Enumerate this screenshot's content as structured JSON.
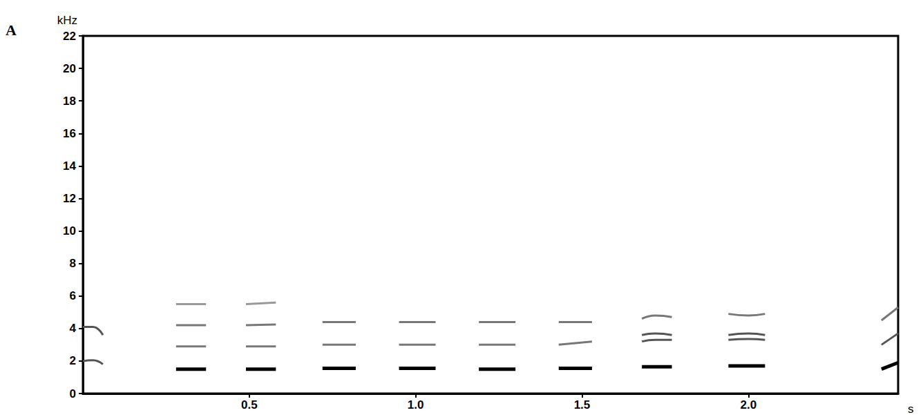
{
  "chart_data": {
    "type": "line",
    "panel_label": "A",
    "x_label": "s",
    "y_label": "kHz",
    "xlim": [
      0,
      2.45
    ],
    "xticks": [
      0.5,
      {
        "value": 1,
        "label": "1.0"
      },
      1.5,
      {
        "value": 2,
        "label": "2.0"
      }
    ],
    "ylim": [
      0,
      22
    ],
    "yticks": [
      0,
      2,
      4,
      6,
      8,
      10,
      12,
      14,
      16,
      18,
      20,
      22
    ],
    "grid": false,
    "segments": [
      {
        "color": "#555555",
        "x": [
          0.0,
          0.03,
          0.06
        ],
        "y": [
          4.1,
          4.1,
          3.6
        ]
      },
      {
        "color": "#555555",
        "x": [
          0.0,
          0.03,
          0.06
        ],
        "y": [
          2.0,
          2.05,
          1.8
        ]
      },
      {
        "color": "#000000",
        "x": [
          0.28,
          0.37
        ],
        "y": [
          1.5,
          1.5
        ]
      },
      {
        "color": "#777777",
        "x": [
          0.28,
          0.37
        ],
        "y": [
          2.9,
          2.9
        ]
      },
      {
        "color": "#777777",
        "x": [
          0.28,
          0.37
        ],
        "y": [
          4.2,
          4.2
        ]
      },
      {
        "color": "#999999",
        "x": [
          0.28,
          0.37
        ],
        "y": [
          5.5,
          5.5
        ]
      },
      {
        "color": "#000000",
        "x": [
          0.49,
          0.58
        ],
        "y": [
          1.5,
          1.5
        ]
      },
      {
        "color": "#777777",
        "x": [
          0.49,
          0.58
        ],
        "y": [
          2.9,
          2.9
        ]
      },
      {
        "color": "#777777",
        "x": [
          0.49,
          0.58
        ],
        "y": [
          4.2,
          4.25
        ]
      },
      {
        "color": "#999999",
        "x": [
          0.49,
          0.58
        ],
        "y": [
          5.5,
          5.6
        ]
      },
      {
        "color": "#000000",
        "x": [
          0.72,
          0.82
        ],
        "y": [
          1.55,
          1.55
        ]
      },
      {
        "color": "#777777",
        "x": [
          0.72,
          0.82
        ],
        "y": [
          3.0,
          3.0
        ]
      },
      {
        "color": "#777777",
        "x": [
          0.72,
          0.82
        ],
        "y": [
          4.4,
          4.4
        ]
      },
      {
        "color": "#000000",
        "x": [
          0.95,
          1.06
        ],
        "y": [
          1.55,
          1.55
        ]
      },
      {
        "color": "#777777",
        "x": [
          0.95,
          1.06
        ],
        "y": [
          3.0,
          3.0
        ]
      },
      {
        "color": "#777777",
        "x": [
          0.95,
          1.06
        ],
        "y": [
          4.4,
          4.4
        ]
      },
      {
        "color": "#000000",
        "x": [
          1.19,
          1.3
        ],
        "y": [
          1.5,
          1.5
        ]
      },
      {
        "color": "#777777",
        "x": [
          1.19,
          1.3
        ],
        "y": [
          3.0,
          3.0
        ]
      },
      {
        "color": "#777777",
        "x": [
          1.19,
          1.3
        ],
        "y": [
          4.4,
          4.4
        ]
      },
      {
        "color": "#000000",
        "x": [
          1.43,
          1.53
        ],
        "y": [
          1.55,
          1.55
        ]
      },
      {
        "color": "#777777",
        "x": [
          1.43,
          1.48,
          1.53
        ],
        "y": [
          3.0,
          3.1,
          3.2
        ]
      },
      {
        "color": "#777777",
        "x": [
          1.43,
          1.53
        ],
        "y": [
          4.4,
          4.4
        ]
      },
      {
        "color": "#000000",
        "x": [
          1.68,
          1.77
        ],
        "y": [
          1.65,
          1.65
        ]
      },
      {
        "color": "#555555",
        "x": [
          1.68,
          1.72,
          1.77
        ],
        "y": [
          3.2,
          3.3,
          3.3
        ]
      },
      {
        "color": "#555555",
        "x": [
          1.68,
          1.72,
          1.77
        ],
        "y": [
          3.6,
          3.7,
          3.6
        ]
      },
      {
        "color": "#777777",
        "x": [
          1.68,
          1.72,
          1.77
        ],
        "y": [
          4.6,
          4.8,
          4.7
        ]
      },
      {
        "color": "#000000",
        "x": [
          1.94,
          2.05
        ],
        "y": [
          1.7,
          1.7
        ]
      },
      {
        "color": "#555555",
        "x": [
          1.94,
          2.0,
          2.05
        ],
        "y": [
          3.3,
          3.35,
          3.3
        ]
      },
      {
        "color": "#555555",
        "x": [
          1.94,
          2.0,
          2.05
        ],
        "y": [
          3.6,
          3.7,
          3.6
        ]
      },
      {
        "color": "#777777",
        "x": [
          1.94,
          2.0,
          2.05
        ],
        "y": [
          4.9,
          4.8,
          4.9
        ]
      },
      {
        "color": "#000000",
        "x": [
          2.4,
          2.45
        ],
        "y": [
          1.5,
          1.9
        ]
      },
      {
        "color": "#555555",
        "x": [
          2.4,
          2.45
        ],
        "y": [
          3.0,
          3.7
        ]
      },
      {
        "color": "#777777",
        "x": [
          2.4,
          2.45
        ],
        "y": [
          4.5,
          5.3
        ]
      }
    ]
  }
}
